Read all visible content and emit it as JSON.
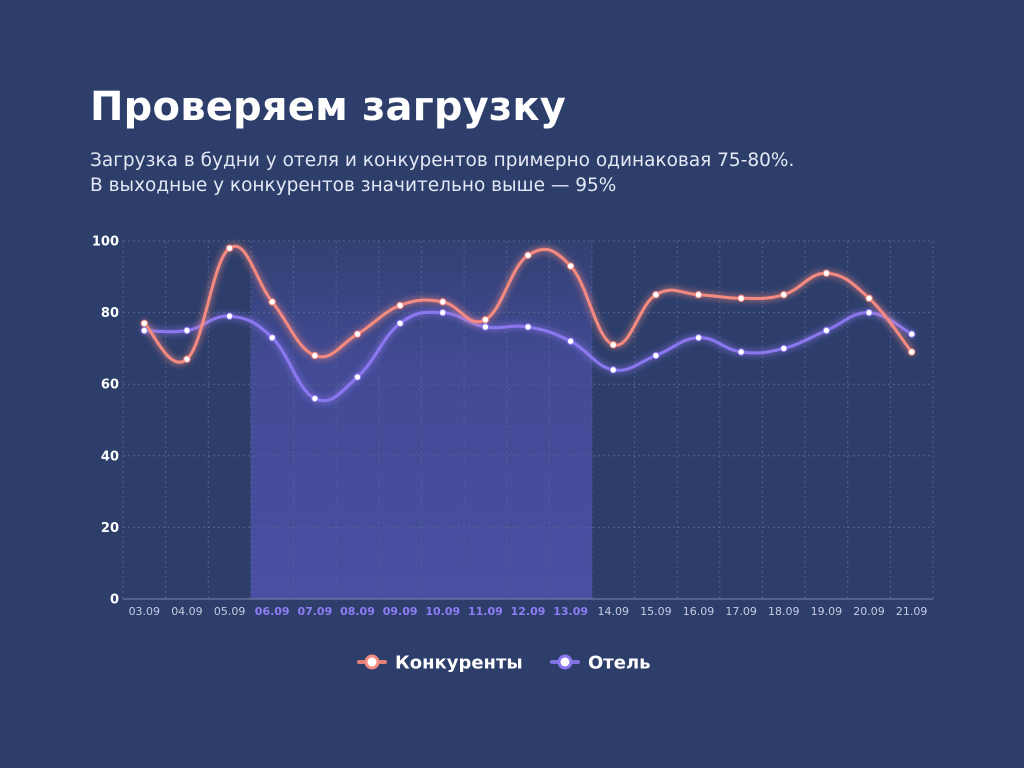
{
  "slide": {
    "title": "Проверяем загрузку",
    "subtitle_lines": [
      "Загрузка в будни у отеля и конкурентов примерно одинаковая 75-80%.",
      "В выходные у конкурентов значительно выше — 95%"
    ]
  },
  "chart_data": {
    "type": "line",
    "title": "",
    "xlabel": "",
    "ylabel": "",
    "ylim": [
      0,
      100
    ],
    "yticks": [
      0,
      20,
      40,
      60,
      80,
      100
    ],
    "grid": true,
    "legend_position": "bottom-center",
    "categories": [
      "03.09",
      "04.09",
      "05.09",
      "06.09",
      "07.09",
      "08.09",
      "09.09",
      "10.09",
      "11.09",
      "12.09",
      "13.09",
      "14.09",
      "15.09",
      "16.09",
      "17.09",
      "18.09",
      "19.09",
      "20.09",
      "21.09"
    ],
    "highlighted_categories": [
      "06.09",
      "07.09",
      "08.09",
      "09.09",
      "10.09",
      "11.09",
      "12.09",
      "13.09"
    ],
    "series": [
      {
        "name": "Конкуренты",
        "color": "#f58a80",
        "values": [
          77,
          67,
          98,
          83,
          68,
          74,
          82,
          83,
          78,
          96,
          93,
          71,
          85,
          85,
          84,
          85,
          91,
          84,
          69
        ]
      },
      {
        "name": "Отель",
        "color": "#8b78f0",
        "values": [
          75,
          75,
          79,
          73,
          56,
          62,
          77,
          80,
          76,
          76,
          72,
          64,
          68,
          73,
          69,
          70,
          75,
          80,
          74
        ]
      }
    ],
    "colors": {
      "background": "#2d3e6b",
      "highlight_band": "#4a4fa3",
      "highlight_tick": "#8f7df5",
      "tick": "#c5cbe0",
      "grid": "#54638c"
    }
  }
}
